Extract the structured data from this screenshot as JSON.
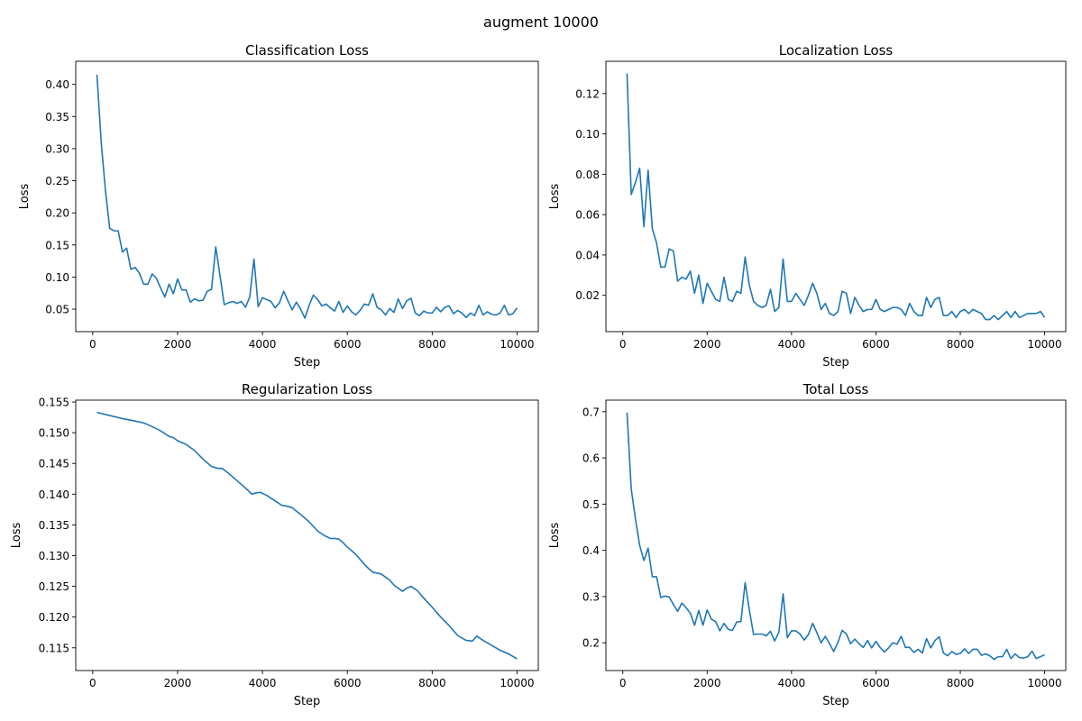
{
  "figure": {
    "suptitle": "augment 10000"
  },
  "colors": {
    "line": "#1f77b4",
    "axes": "#000000",
    "background": "#ffffff"
  },
  "chart_data": [
    {
      "type": "line",
      "title": "Classification Loss",
      "xlabel": "Step",
      "ylabel": "Loss",
      "xlim": [
        -400,
        10500
      ],
      "ylim": [
        0.015,
        0.436
      ],
      "xticks": [
        0,
        2000,
        4000,
        6000,
        8000,
        10000
      ],
      "yticks": [
        0.05,
        0.1,
        0.15,
        0.2,
        0.25,
        0.3,
        0.35,
        0.4
      ],
      "tick_format": "fixed2",
      "grid": false,
      "series": [
        {
          "x": [
            100,
            200,
            300,
            400,
            500,
            600,
            700,
            800,
            900,
            1000,
            1100,
            1200,
            1300,
            1400,
            1500,
            1600,
            1700,
            1800,
            1900,
            2000,
            2100,
            2200,
            2300,
            2400,
            2500,
            2600,
            2700,
            2800,
            2900,
            3000,
            3100,
            3200,
            3300,
            3400,
            3500,
            3600,
            3700,
            3800,
            3900,
            4000,
            4100,
            4200,
            4300,
            4400,
            4500,
            4600,
            4700,
            4800,
            4900,
            5000,
            5100,
            5200,
            5300,
            5400,
            5500,
            5600,
            5700,
            5800,
            5900,
            6000,
            6100,
            6200,
            6300,
            6400,
            6500,
            6600,
            6700,
            6800,
            6900,
            7000,
            7100,
            7200,
            7300,
            7400,
            7500,
            7600,
            7700,
            7800,
            7900,
            8000,
            8100,
            8200,
            8300,
            8400,
            8500,
            8600,
            8700,
            8800,
            8900,
            9000,
            9100,
            9200,
            9300,
            9400,
            9500,
            9600,
            9700,
            9800,
            9900,
            10000
          ],
          "y": [
            0.415,
            0.31,
            0.235,
            0.176,
            0.172,
            0.172,
            0.139,
            0.145,
            0.112,
            0.115,
            0.106,
            0.089,
            0.089,
            0.105,
            0.098,
            0.083,
            0.069,
            0.089,
            0.074,
            0.097,
            0.08,
            0.08,
            0.061,
            0.066,
            0.063,
            0.064,
            0.078,
            0.081,
            0.147,
            0.102,
            0.057,
            0.06,
            0.062,
            0.059,
            0.062,
            0.053,
            0.069,
            0.128,
            0.054,
            0.068,
            0.065,
            0.062,
            0.052,
            0.06,
            0.078,
            0.063,
            0.049,
            0.061,
            0.05,
            0.036,
            0.056,
            0.072,
            0.065,
            0.055,
            0.058,
            0.052,
            0.047,
            0.062,
            0.045,
            0.055,
            0.046,
            0.041,
            0.048,
            0.058,
            0.056,
            0.074,
            0.053,
            0.049,
            0.041,
            0.051,
            0.045,
            0.066,
            0.051,
            0.063,
            0.067,
            0.044,
            0.04,
            0.047,
            0.044,
            0.044,
            0.053,
            0.046,
            0.053,
            0.055,
            0.043,
            0.048,
            0.044,
            0.037,
            0.044,
            0.04,
            0.056,
            0.041,
            0.046,
            0.042,
            0.041,
            0.044,
            0.056,
            0.041,
            0.043,
            0.052
          ]
        }
      ]
    },
    {
      "type": "line",
      "title": "Localization Loss",
      "xlabel": "Step",
      "ylabel": "Loss",
      "xlim": [
        -400,
        10500
      ],
      "ylim": [
        0.002,
        0.136
      ],
      "xticks": [
        0,
        2000,
        4000,
        6000,
        8000,
        10000
      ],
      "yticks": [
        0.02,
        0.04,
        0.06,
        0.08,
        0.1,
        0.12
      ],
      "tick_format": "fixed2",
      "grid": false,
      "series": [
        {
          "x": [
            100,
            200,
            300,
            400,
            500,
            600,
            700,
            800,
            900,
            1000,
            1100,
            1200,
            1300,
            1400,
            1500,
            1600,
            1700,
            1800,
            1900,
            2000,
            2100,
            2200,
            2300,
            2400,
            2500,
            2600,
            2700,
            2800,
            2900,
            3000,
            3100,
            3200,
            3300,
            3400,
            3500,
            3600,
            3700,
            3800,
            3900,
            4000,
            4100,
            4200,
            4300,
            4400,
            4500,
            4600,
            4700,
            4800,
            4900,
            5000,
            5100,
            5200,
            5300,
            5400,
            5500,
            5600,
            5700,
            5800,
            5900,
            6000,
            6100,
            6200,
            6300,
            6400,
            6500,
            6600,
            6700,
            6800,
            6900,
            7000,
            7100,
            7200,
            7300,
            7400,
            7500,
            7600,
            7700,
            7800,
            7900,
            8000,
            8100,
            8200,
            8300,
            8400,
            8500,
            8600,
            8700,
            8800,
            8900,
            9000,
            9100,
            9200,
            9300,
            9400,
            9500,
            9600,
            9700,
            9800,
            9900,
            10000
          ],
          "y": [
            0.13,
            0.07,
            0.076,
            0.083,
            0.054,
            0.082,
            0.053,
            0.046,
            0.034,
            0.034,
            0.043,
            0.042,
            0.027,
            0.029,
            0.028,
            0.032,
            0.021,
            0.03,
            0.016,
            0.026,
            0.022,
            0.018,
            0.017,
            0.029,
            0.018,
            0.017,
            0.022,
            0.021,
            0.039,
            0.025,
            0.017,
            0.015,
            0.014,
            0.015,
            0.023,
            0.012,
            0.014,
            0.038,
            0.017,
            0.017,
            0.021,
            0.018,
            0.015,
            0.02,
            0.026,
            0.021,
            0.013,
            0.016,
            0.011,
            0.01,
            0.012,
            0.022,
            0.021,
            0.011,
            0.019,
            0.015,
            0.012,
            0.013,
            0.013,
            0.018,
            0.013,
            0.012,
            0.013,
            0.014,
            0.014,
            0.013,
            0.01,
            0.016,
            0.012,
            0.01,
            0.01,
            0.019,
            0.014,
            0.018,
            0.019,
            0.01,
            0.01,
            0.012,
            0.009,
            0.012,
            0.013,
            0.011,
            0.013,
            0.012,
            0.011,
            0.008,
            0.008,
            0.01,
            0.008,
            0.01,
            0.012,
            0.009,
            0.012,
            0.009,
            0.01,
            0.011,
            0.011,
            0.011,
            0.012,
            0.009
          ]
        }
      ]
    },
    {
      "type": "line",
      "title": "Regularization Loss",
      "xlabel": "Step",
      "ylabel": "Loss",
      "xlim": [
        -400,
        10500
      ],
      "ylim": [
        0.1113,
        0.1553
      ],
      "xticks": [
        0,
        2000,
        4000,
        6000,
        8000,
        10000
      ],
      "yticks": [
        0.115,
        0.12,
        0.125,
        0.13,
        0.135,
        0.14,
        0.145,
        0.15,
        0.155
      ],
      "tick_format": "fixed3",
      "grid": false,
      "series": [
        {
          "x": [
            100,
            400,
            700,
            1000,
            1200,
            1400,
            1600,
            1800,
            1900,
            2000,
            2200,
            2400,
            2600,
            2800,
            2950,
            3050,
            3200,
            3400,
            3600,
            3750,
            3850,
            3950,
            4100,
            4300,
            4450,
            4600,
            4700,
            4900,
            5100,
            5300,
            5450,
            5600,
            5700,
            5800,
            5900,
            6000,
            6200,
            6400,
            6500,
            6600,
            6800,
            7000,
            7100,
            7300,
            7400,
            7500,
            7650,
            7800,
            8000,
            8200,
            8400,
            8600,
            8800,
            8950,
            9050,
            9200,
            9400,
            9600,
            9800,
            10000
          ],
          "y": [
            0.1533,
            0.1528,
            0.1523,
            0.1519,
            0.1516,
            0.151,
            0.1503,
            0.1494,
            0.1492,
            0.1487,
            0.1481,
            0.1471,
            0.1457,
            0.1445,
            0.1442,
            0.1442,
            0.1434,
            0.1422,
            0.141,
            0.14,
            0.1402,
            0.1403,
            0.1398,
            0.1389,
            0.1382,
            0.138,
            0.1378,
            0.1367,
            0.1355,
            0.134,
            0.1333,
            0.1328,
            0.1328,
            0.1327,
            0.1321,
            0.1314,
            0.1302,
            0.1286,
            0.1279,
            0.1273,
            0.127,
            0.126,
            0.1252,
            0.1242,
            0.1247,
            0.125,
            0.1243,
            0.1231,
            0.1216,
            0.12,
            0.1186,
            0.117,
            0.1162,
            0.1161,
            0.1169,
            0.1162,
            0.1154,
            0.1146,
            0.114,
            0.1132
          ]
        }
      ]
    },
    {
      "type": "line",
      "title": "Total Loss",
      "xlabel": "Step",
      "ylabel": "Loss",
      "xlim": [
        -400,
        10500
      ],
      "ylim": [
        0.14,
        0.725
      ],
      "xticks": [
        0,
        2000,
        4000,
        6000,
        8000,
        10000
      ],
      "yticks": [
        0.2,
        0.3,
        0.4,
        0.5,
        0.6,
        0.7
      ],
      "tick_format": "fixed1",
      "grid": false,
      "series": [
        {
          "x": [
            100,
            200,
            300,
            400,
            500,
            600,
            700,
            800,
            900,
            1000,
            1100,
            1200,
            1300,
            1400,
            1500,
            1600,
            1700,
            1800,
            1900,
            2000,
            2100,
            2200,
            2300,
            2400,
            2500,
            2600,
            2700,
            2800,
            2900,
            3000,
            3100,
            3200,
            3300,
            3400,
            3500,
            3600,
            3700,
            3800,
            3900,
            4000,
            4100,
            4200,
            4300,
            4400,
            4500,
            4600,
            4700,
            4800,
            4900,
            5000,
            5100,
            5200,
            5300,
            5400,
            5500,
            5600,
            5700,
            5800,
            5900,
            6000,
            6100,
            6200,
            6300,
            6400,
            6500,
            6600,
            6700,
            6800,
            6900,
            7000,
            7100,
            7200,
            7300,
            7400,
            7500,
            7600,
            7700,
            7800,
            7900,
            8000,
            8100,
            8200,
            8300,
            8400,
            8500,
            8600,
            8700,
            8800,
            8900,
            9000,
            9100,
            9200,
            9300,
            9400,
            9500,
            9600,
            9700,
            9800,
            9900,
            10000
          ],
          "y": [
            0.698,
            0.533,
            0.468,
            0.411,
            0.378,
            0.405,
            0.343,
            0.343,
            0.298,
            0.301,
            0.299,
            0.283,
            0.268,
            0.286,
            0.276,
            0.264,
            0.238,
            0.27,
            0.238,
            0.271,
            0.251,
            0.246,
            0.226,
            0.242,
            0.229,
            0.227,
            0.245,
            0.246,
            0.33,
            0.271,
            0.218,
            0.219,
            0.219,
            0.215,
            0.225,
            0.204,
            0.223,
            0.306,
            0.211,
            0.226,
            0.226,
            0.219,
            0.206,
            0.218,
            0.242,
            0.222,
            0.2,
            0.214,
            0.198,
            0.181,
            0.201,
            0.227,
            0.219,
            0.198,
            0.208,
            0.198,
            0.19,
            0.205,
            0.189,
            0.203,
            0.19,
            0.18,
            0.189,
            0.2,
            0.197,
            0.214,
            0.19,
            0.19,
            0.179,
            0.186,
            0.178,
            0.209,
            0.189,
            0.205,
            0.213,
            0.178,
            0.172,
            0.181,
            0.175,
            0.177,
            0.187,
            0.177,
            0.186,
            0.186,
            0.173,
            0.176,
            0.172,
            0.164,
            0.17,
            0.17,
            0.186,
            0.166,
            0.176,
            0.168,
            0.167,
            0.17,
            0.182,
            0.166,
            0.17,
            0.174
          ]
        }
      ]
    }
  ]
}
